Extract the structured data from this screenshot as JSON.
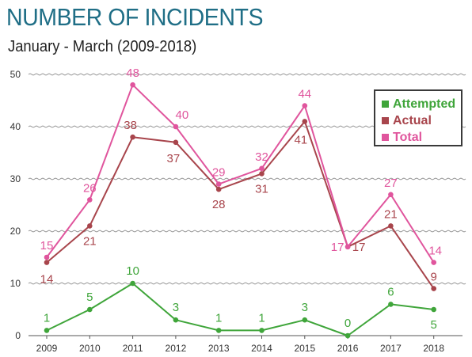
{
  "header": {
    "title": "NUMBER OF INCIDENTS",
    "subtitle": "January - March (2009-2018)"
  },
  "chart_data": {
    "type": "line",
    "title": "NUMBER OF INCIDENTS",
    "subtitle": "January - March (2009-2018)",
    "x": [
      "2009",
      "2010",
      "2011",
      "2012",
      "2013",
      "2014",
      "2015",
      "2016",
      "2017",
      "2018"
    ],
    "ylim": [
      0,
      50
    ],
    "yticks": [
      0,
      10,
      20,
      30,
      40,
      50
    ],
    "grid": "horizontal wavy lines",
    "legend_position": "top-right",
    "series": [
      {
        "name": "Attempted",
        "color": "#3fa53a",
        "values": [
          1,
          5,
          10,
          3,
          1,
          1,
          3,
          0,
          6,
          5
        ]
      },
      {
        "name": "Actual",
        "color": "#a8454c",
        "values": [
          14,
          21,
          38,
          37,
          28,
          31,
          41,
          17,
          21,
          9
        ]
      },
      {
        "name": "Total",
        "color": "#e0559d",
        "values": [
          15,
          26,
          48,
          40,
          29,
          32,
          44,
          17,
          27,
          14
        ]
      }
    ]
  }
}
